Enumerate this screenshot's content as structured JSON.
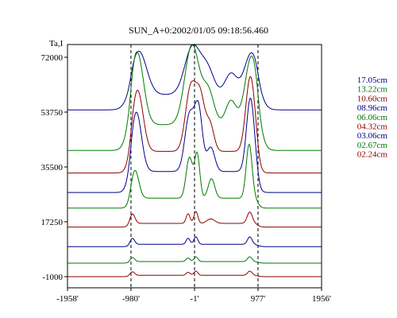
{
  "chart_data": {
    "type": "line",
    "title": "SUN_A+0:2002/01/05 09:18:56.460",
    "ylabel": "Ta,I",
    "xlabel": "",
    "xlim": [
      -1958,
      1956
    ],
    "ylim": [
      -1000,
      72000
    ],
    "x_ticks": [
      -1958,
      -980,
      -1,
      977,
      1956
    ],
    "x_tick_labels": [
      "-1958'",
      "-980'",
      "-1'",
      "977'",
      "1956'"
    ],
    "y_ticks": [
      -1000,
      17250,
      35500,
      53750,
      72000
    ],
    "y_tick_labels": [
      "-1000",
      "17250",
      "35500",
      "53750",
      "72000"
    ],
    "reference_lines_x": [
      -980,
      -1,
      977
    ],
    "grid": false,
    "legend_position": "right",
    "colors": {
      "blue": "#00008b",
      "green": "#007a00",
      "red": "#8b0000"
    },
    "series": [
      {
        "name": "17.05cm",
        "color": "#00008b",
        "baseline": 54500,
        "peaks": [
          [
            -860,
            14500,
            120
          ],
          [
            -30,
            16000,
            120
          ],
          [
            200,
            8000,
            100
          ],
          [
            560,
            7000,
            90
          ],
          [
            880,
            14000,
            110
          ]
        ]
      },
      {
        "name": "13.22cm",
        "color": "#007a00",
        "baseline": 41000,
        "peaks": [
          [
            -890,
            24500,
            100
          ],
          [
            -40,
            26500,
            110
          ],
          [
            210,
            11000,
            90
          ],
          [
            560,
            8000,
            80
          ],
          [
            880,
            23000,
            100
          ]
        ]
      },
      {
        "name": "10.60cm",
        "color": "#8b0000",
        "baseline": 33500,
        "peaks": [
          [
            -880,
            20500,
            85
          ],
          [
            -60,
            21000,
            80
          ],
          [
            90,
            17000,
            70
          ],
          [
            240,
            8500,
            60
          ],
          [
            860,
            25000,
            70
          ]
        ]
      },
      {
        "name": "08.96cm",
        "color": "#00008b",
        "baseline": 27000,
        "peaks": [
          [
            -900,
            20000,
            80
          ],
          [
            -80,
            18500,
            70
          ],
          [
            60,
            20500,
            60
          ],
          [
            250,
            8000,
            60
          ],
          [
            860,
            24500,
            60
          ]
        ]
      },
      {
        "name": "06.06cm",
        "color": "#007a00",
        "baseline": 21800,
        "peaks": [
          [
            -920,
            9500,
            60
          ],
          [
            -80,
            13500,
            50
          ],
          [
            40,
            14500,
            40
          ],
          [
            260,
            6500,
            50
          ],
          [
            840,
            18000,
            45
          ]
        ]
      },
      {
        "name": "04.32cm",
        "color": "#8b0000",
        "baseline": 15500,
        "peaks": [
          [
            -960,
            3500,
            40
          ],
          [
            -100,
            3200,
            30
          ],
          [
            20,
            4000,
            30
          ],
          [
            250,
            1500,
            60
          ],
          [
            850,
            3800,
            40
          ]
        ]
      },
      {
        "name": "03.06cm",
        "color": "#00008b",
        "baseline": 9000,
        "peaks": [
          [
            -960,
            2200,
            35
          ],
          [
            -100,
            2000,
            30
          ],
          [
            20,
            2500,
            30
          ],
          [
            850,
            2500,
            35
          ]
        ]
      },
      {
        "name": "02.67cm",
        "color": "#007a00",
        "baseline": 3500,
        "peaks": [
          [
            -960,
            1500,
            35
          ],
          [
            -100,
            1200,
            30
          ],
          [
            20,
            1600,
            30
          ],
          [
            850,
            1600,
            35
          ]
        ]
      },
      {
        "name": "02.24cm",
        "color": "#8b0000",
        "baseline": -1000,
        "peaks": [
          [
            -960,
            1300,
            35
          ],
          [
            -100,
            1000,
            30
          ],
          [
            20,
            1400,
            30
          ],
          [
            850,
            1400,
            35
          ]
        ]
      }
    ]
  }
}
